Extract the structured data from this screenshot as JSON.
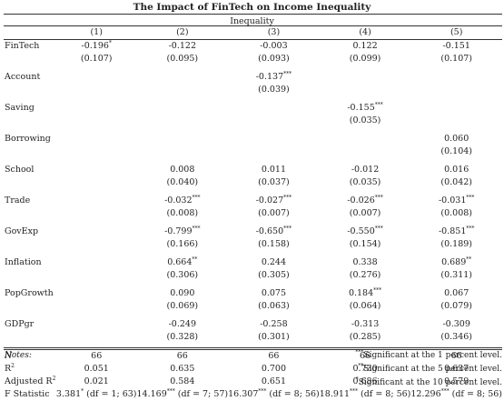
{
  "title": "The Impact of FinTech on Income Inequality",
  "dependent_var": "Inequality",
  "columns": [
    "(1)",
    "(2)",
    "(3)",
    "(4)",
    "(5)"
  ],
  "rows": [
    {
      "label": "FinTech",
      "coef": [
        "-0.196",
        "-0.122",
        "-0.003",
        "0.122",
        "-0.151"
      ],
      "stars": [
        "*",
        "",
        "",
        "",
        ""
      ],
      "se": [
        "(0.107)",
        "(0.095)",
        "(0.093)",
        "(0.099)",
        "(0.107)"
      ]
    },
    {
      "label": "Account",
      "coef": [
        "",
        "",
        "-0.137",
        "",
        ""
      ],
      "stars": [
        "",
        "",
        "***",
        "",
        ""
      ],
      "se": [
        "",
        "",
        "(0.039)",
        "",
        ""
      ]
    },
    {
      "label": "Saving",
      "coef": [
        "",
        "",
        "",
        "-0.155",
        ""
      ],
      "stars": [
        "",
        "",
        "",
        "***",
        ""
      ],
      "se": [
        "",
        "",
        "",
        "(0.035)",
        ""
      ]
    },
    {
      "label": "Borrowing",
      "coef": [
        "",
        "",
        "",
        "",
        "0.060"
      ],
      "stars": [
        "",
        "",
        "",
        "",
        ""
      ],
      "se": [
        "",
        "",
        "",
        "",
        "(0.104)"
      ]
    },
    {
      "label": "School",
      "coef": [
        "",
        "0.008",
        "0.011",
        "-0.012",
        "0.016"
      ],
      "stars": [
        "",
        "",
        "",
        "",
        ""
      ],
      "se": [
        "",
        "(0.040)",
        "(0.037)",
        "(0.035)",
        "(0.042)"
      ]
    },
    {
      "label": "Trade",
      "coef": [
        "",
        "-0.032",
        "-0.027",
        "-0.026",
        "-0.031"
      ],
      "stars": [
        "",
        "***",
        "***",
        "***",
        "***"
      ],
      "se": [
        "",
        "(0.008)",
        "(0.007)",
        "(0.007)",
        "(0.008)"
      ]
    },
    {
      "label": "GovExp",
      "coef": [
        "",
        "-0.799",
        "-0.650",
        "-0.550",
        "-0.851"
      ],
      "stars": [
        "",
        "***",
        "***",
        "***",
        "***"
      ],
      "se": [
        "",
        "(0.166)",
        "(0.158)",
        "(0.154)",
        "(0.189)"
      ]
    },
    {
      "label": "Inflation",
      "coef": [
        "",
        "0.664",
        "0.244",
        "0.338",
        "0.689"
      ],
      "stars": [
        "",
        "**",
        "",
        "",
        "**"
      ],
      "se": [
        "",
        "(0.306)",
        "(0.305)",
        "(0.276)",
        "(0.311)"
      ]
    },
    {
      "label": "PopGrowth",
      "coef": [
        "",
        "0.090",
        "0.075",
        "0.184",
        "0.067"
      ],
      "stars": [
        "",
        "",
        "",
        "***",
        ""
      ],
      "se": [
        "",
        "(0.069)",
        "(0.063)",
        "(0.064)",
        "(0.079)"
      ]
    },
    {
      "label": "GDPgr",
      "coef": [
        "",
        "-0.249",
        "-0.258",
        "-0.313",
        "-0.309"
      ],
      "stars": [
        "",
        "",
        "",
        "",
        ""
      ],
      "se": [
        "",
        "(0.328)",
        "(0.301)",
        "(0.285)",
        "(0.346)"
      ]
    }
  ],
  "stats": {
    "n_label": "N",
    "n": [
      "66",
      "66",
      "66",
      "66",
      "66"
    ],
    "r2_label": "R",
    "r2_sup": "2",
    "r2": [
      "0.051",
      "0.635",
      "0.700",
      "0.730",
      "0.637"
    ],
    "adjr2_label": "Adjusted R",
    "adjr2_sup": "2",
    "adjr2": [
      "0.021",
      "0.584",
      "0.651",
      "0.686",
      "0.579"
    ],
    "f_label": "F Statistic",
    "f": [
      {
        "value": "3.381",
        "stars": "*",
        "df": "(df = 1; 63)"
      },
      {
        "value": "14.169",
        "stars": "***",
        "df": "(df = 7; 57)"
      },
      {
        "value": "16.307",
        "stars": "***",
        "df": "(df = 8; 56)"
      },
      {
        "value": "18.911",
        "stars": "***",
        "df": "(df = 8; 56)"
      },
      {
        "value": "12.296",
        "stars": "***",
        "df": "(df = 8; 56)"
      }
    ]
  },
  "notes": {
    "label": "Notes:",
    "lines": [
      {
        "stars": "***",
        "text": "Significant at the 1 percent level."
      },
      {
        "stars": "**",
        "text": "Significant at the 5 percent level."
      },
      {
        "stars": "*",
        "text": "Significant at the 10 percent level."
      }
    ]
  }
}
